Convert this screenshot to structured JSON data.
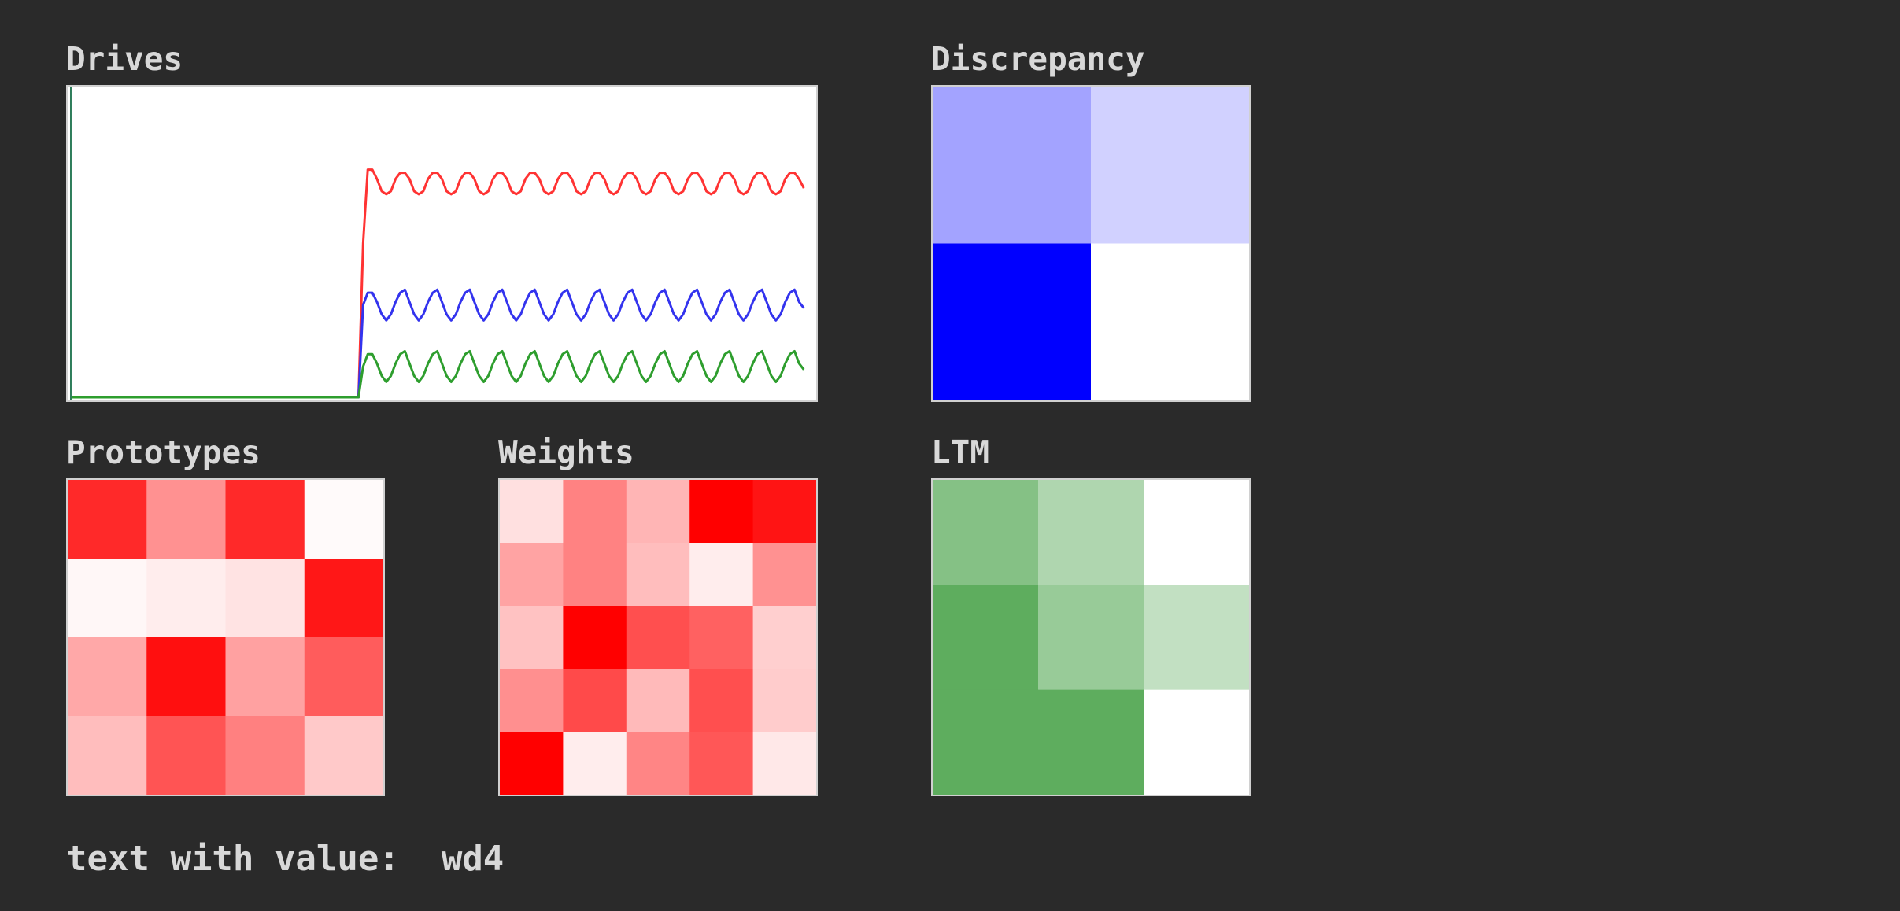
{
  "chart_data": [
    {
      "type": "line",
      "title": "Drives",
      "xlim": [
        0,
        160
      ],
      "ylim": [
        0,
        1
      ],
      "grid": false,
      "series": [
        {
          "color": "#ff3333",
          "values": [
            0,
            0,
            0,
            0,
            0,
            0,
            0,
            0,
            0,
            0,
            0,
            0,
            0,
            0,
            0,
            0,
            0,
            0,
            0,
            0,
            0,
            0,
            0,
            0,
            0,
            0,
            0,
            0,
            0,
            0,
            0,
            0,
            0,
            0,
            0,
            0,
            0,
            0,
            0,
            0,
            0,
            0,
            0,
            0,
            0,
            0,
            0,
            0,
            0,
            0,
            0,
            0,
            0,
            0,
            0,
            0,
            0,
            0,
            0,
            0,
            0,
            0,
            0,
            0.5,
            0.74,
            0.74,
            0.71,
            0.67,
            0.66,
            0.67,
            0.71,
            0.73,
            0.73,
            0.71,
            0.67,
            0.66,
            0.67,
            0.71,
            0.73,
            0.73,
            0.71,
            0.67,
            0.66,
            0.67,
            0.71,
            0.73,
            0.73,
            0.71,
            0.67,
            0.66,
            0.67,
            0.71,
            0.73,
            0.73,
            0.71,
            0.67,
            0.66,
            0.67,
            0.71,
            0.73,
            0.73,
            0.71,
            0.67,
            0.66,
            0.67,
            0.71,
            0.73,
            0.73,
            0.71,
            0.67,
            0.66,
            0.67,
            0.71,
            0.73,
            0.73,
            0.71,
            0.67,
            0.66,
            0.67,
            0.71,
            0.73,
            0.73,
            0.71,
            0.67,
            0.66,
            0.67,
            0.71,
            0.73,
            0.73,
            0.71,
            0.67,
            0.66,
            0.67,
            0.71,
            0.73,
            0.73,
            0.71,
            0.67,
            0.66,
            0.67,
            0.71,
            0.73,
            0.73,
            0.71,
            0.67,
            0.66,
            0.67,
            0.71,
            0.73,
            0.73,
            0.71,
            0.67,
            0.66,
            0.67,
            0.71,
            0.73,
            0.73,
            0.71,
            0.68
          ]
        },
        {
          "color": "#3333ee",
          "values": [
            0,
            0,
            0,
            0,
            0,
            0,
            0,
            0,
            0,
            0,
            0,
            0,
            0,
            0,
            0,
            0,
            0,
            0,
            0,
            0,
            0,
            0,
            0,
            0,
            0,
            0,
            0,
            0,
            0,
            0,
            0,
            0,
            0,
            0,
            0,
            0,
            0,
            0,
            0,
            0,
            0,
            0,
            0,
            0,
            0,
            0,
            0,
            0,
            0,
            0,
            0,
            0,
            0,
            0,
            0,
            0,
            0,
            0,
            0,
            0,
            0,
            0,
            0,
            0.3,
            0.34,
            0.34,
            0.31,
            0.27,
            0.25,
            0.27,
            0.31,
            0.34,
            0.35,
            0.31,
            0.27,
            0.25,
            0.27,
            0.31,
            0.34,
            0.35,
            0.31,
            0.27,
            0.25,
            0.27,
            0.31,
            0.34,
            0.35,
            0.31,
            0.27,
            0.25,
            0.27,
            0.31,
            0.34,
            0.35,
            0.31,
            0.27,
            0.25,
            0.27,
            0.31,
            0.34,
            0.35,
            0.31,
            0.27,
            0.25,
            0.27,
            0.31,
            0.34,
            0.35,
            0.31,
            0.27,
            0.25,
            0.27,
            0.31,
            0.34,
            0.35,
            0.31,
            0.27,
            0.25,
            0.27,
            0.31,
            0.34,
            0.35,
            0.31,
            0.27,
            0.25,
            0.27,
            0.31,
            0.34,
            0.35,
            0.31,
            0.27,
            0.25,
            0.27,
            0.31,
            0.34,
            0.35,
            0.31,
            0.27,
            0.25,
            0.27,
            0.31,
            0.34,
            0.35,
            0.31,
            0.27,
            0.25,
            0.27,
            0.31,
            0.34,
            0.35,
            0.31,
            0.27,
            0.25,
            0.27,
            0.31,
            0.34,
            0.35,
            0.31,
            0.29
          ]
        },
        {
          "color": "#2e9e2e",
          "values": [
            0,
            0,
            0,
            0,
            0,
            0,
            0,
            0,
            0,
            0,
            0,
            0,
            0,
            0,
            0,
            0,
            0,
            0,
            0,
            0,
            0,
            0,
            0,
            0,
            0,
            0,
            0,
            0,
            0,
            0,
            0,
            0,
            0,
            0,
            0,
            0,
            0,
            0,
            0,
            0,
            0,
            0,
            0,
            0,
            0,
            0,
            0,
            0,
            0,
            0,
            0,
            0,
            0,
            0,
            0,
            0,
            0,
            0,
            0,
            0,
            0,
            0,
            0,
            0.1,
            0.14,
            0.14,
            0.11,
            0.07,
            0.05,
            0.07,
            0.11,
            0.14,
            0.15,
            0.11,
            0.07,
            0.05,
            0.07,
            0.11,
            0.14,
            0.15,
            0.11,
            0.07,
            0.05,
            0.07,
            0.11,
            0.14,
            0.15,
            0.11,
            0.07,
            0.05,
            0.07,
            0.11,
            0.14,
            0.15,
            0.11,
            0.07,
            0.05,
            0.07,
            0.11,
            0.14,
            0.15,
            0.11,
            0.07,
            0.05,
            0.07,
            0.11,
            0.14,
            0.15,
            0.11,
            0.07,
            0.05,
            0.07,
            0.11,
            0.14,
            0.15,
            0.11,
            0.07,
            0.05,
            0.07,
            0.11,
            0.14,
            0.15,
            0.11,
            0.07,
            0.05,
            0.07,
            0.11,
            0.14,
            0.15,
            0.11,
            0.07,
            0.05,
            0.07,
            0.11,
            0.14,
            0.15,
            0.11,
            0.07,
            0.05,
            0.07,
            0.11,
            0.14,
            0.15,
            0.11,
            0.07,
            0.05,
            0.07,
            0.11,
            0.14,
            0.15,
            0.11,
            0.07,
            0.05,
            0.07,
            0.11,
            0.14,
            0.15,
            0.11,
            0.09
          ]
        }
      ]
    },
    {
      "type": "heatmap",
      "title": "Discrepancy",
      "color": "#0000ff",
      "values": [
        [
          0.36,
          0.18
        ],
        [
          1.0,
          0.0
        ]
      ]
    },
    {
      "type": "heatmap",
      "title": "Prototypes",
      "color": "#ff0000",
      "values": [
        [
          0.84,
          0.43,
          0.84,
          0.02
        ],
        [
          0.03,
          0.07,
          0.11,
          0.91
        ],
        [
          0.34,
          0.94,
          0.37,
          0.64
        ],
        [
          0.26,
          0.67,
          0.5,
          0.21
        ]
      ]
    },
    {
      "type": "heatmap",
      "title": "Weights",
      "color": "#ff0000",
      "values": [
        [
          0.12,
          0.49,
          0.29,
          1.0,
          0.92
        ],
        [
          0.36,
          0.49,
          0.26,
          0.07,
          0.43
        ],
        [
          0.24,
          1.0,
          0.69,
          0.62,
          0.19
        ],
        [
          0.44,
          0.71,
          0.27,
          0.69,
          0.2
        ],
        [
          1.0,
          0.07,
          0.48,
          0.66,
          0.09
        ]
      ]
    },
    {
      "type": "heatmap",
      "title": "LTM",
      "color": "#5ead5e",
      "values": [
        [
          0.76,
          0.5,
          0.0
        ],
        [
          1.0,
          0.64,
          0.38
        ],
        [
          1.0,
          1.0,
          0.0
        ]
      ]
    }
  ],
  "footer": {
    "label": "text with value:",
    "value": "wd4"
  }
}
